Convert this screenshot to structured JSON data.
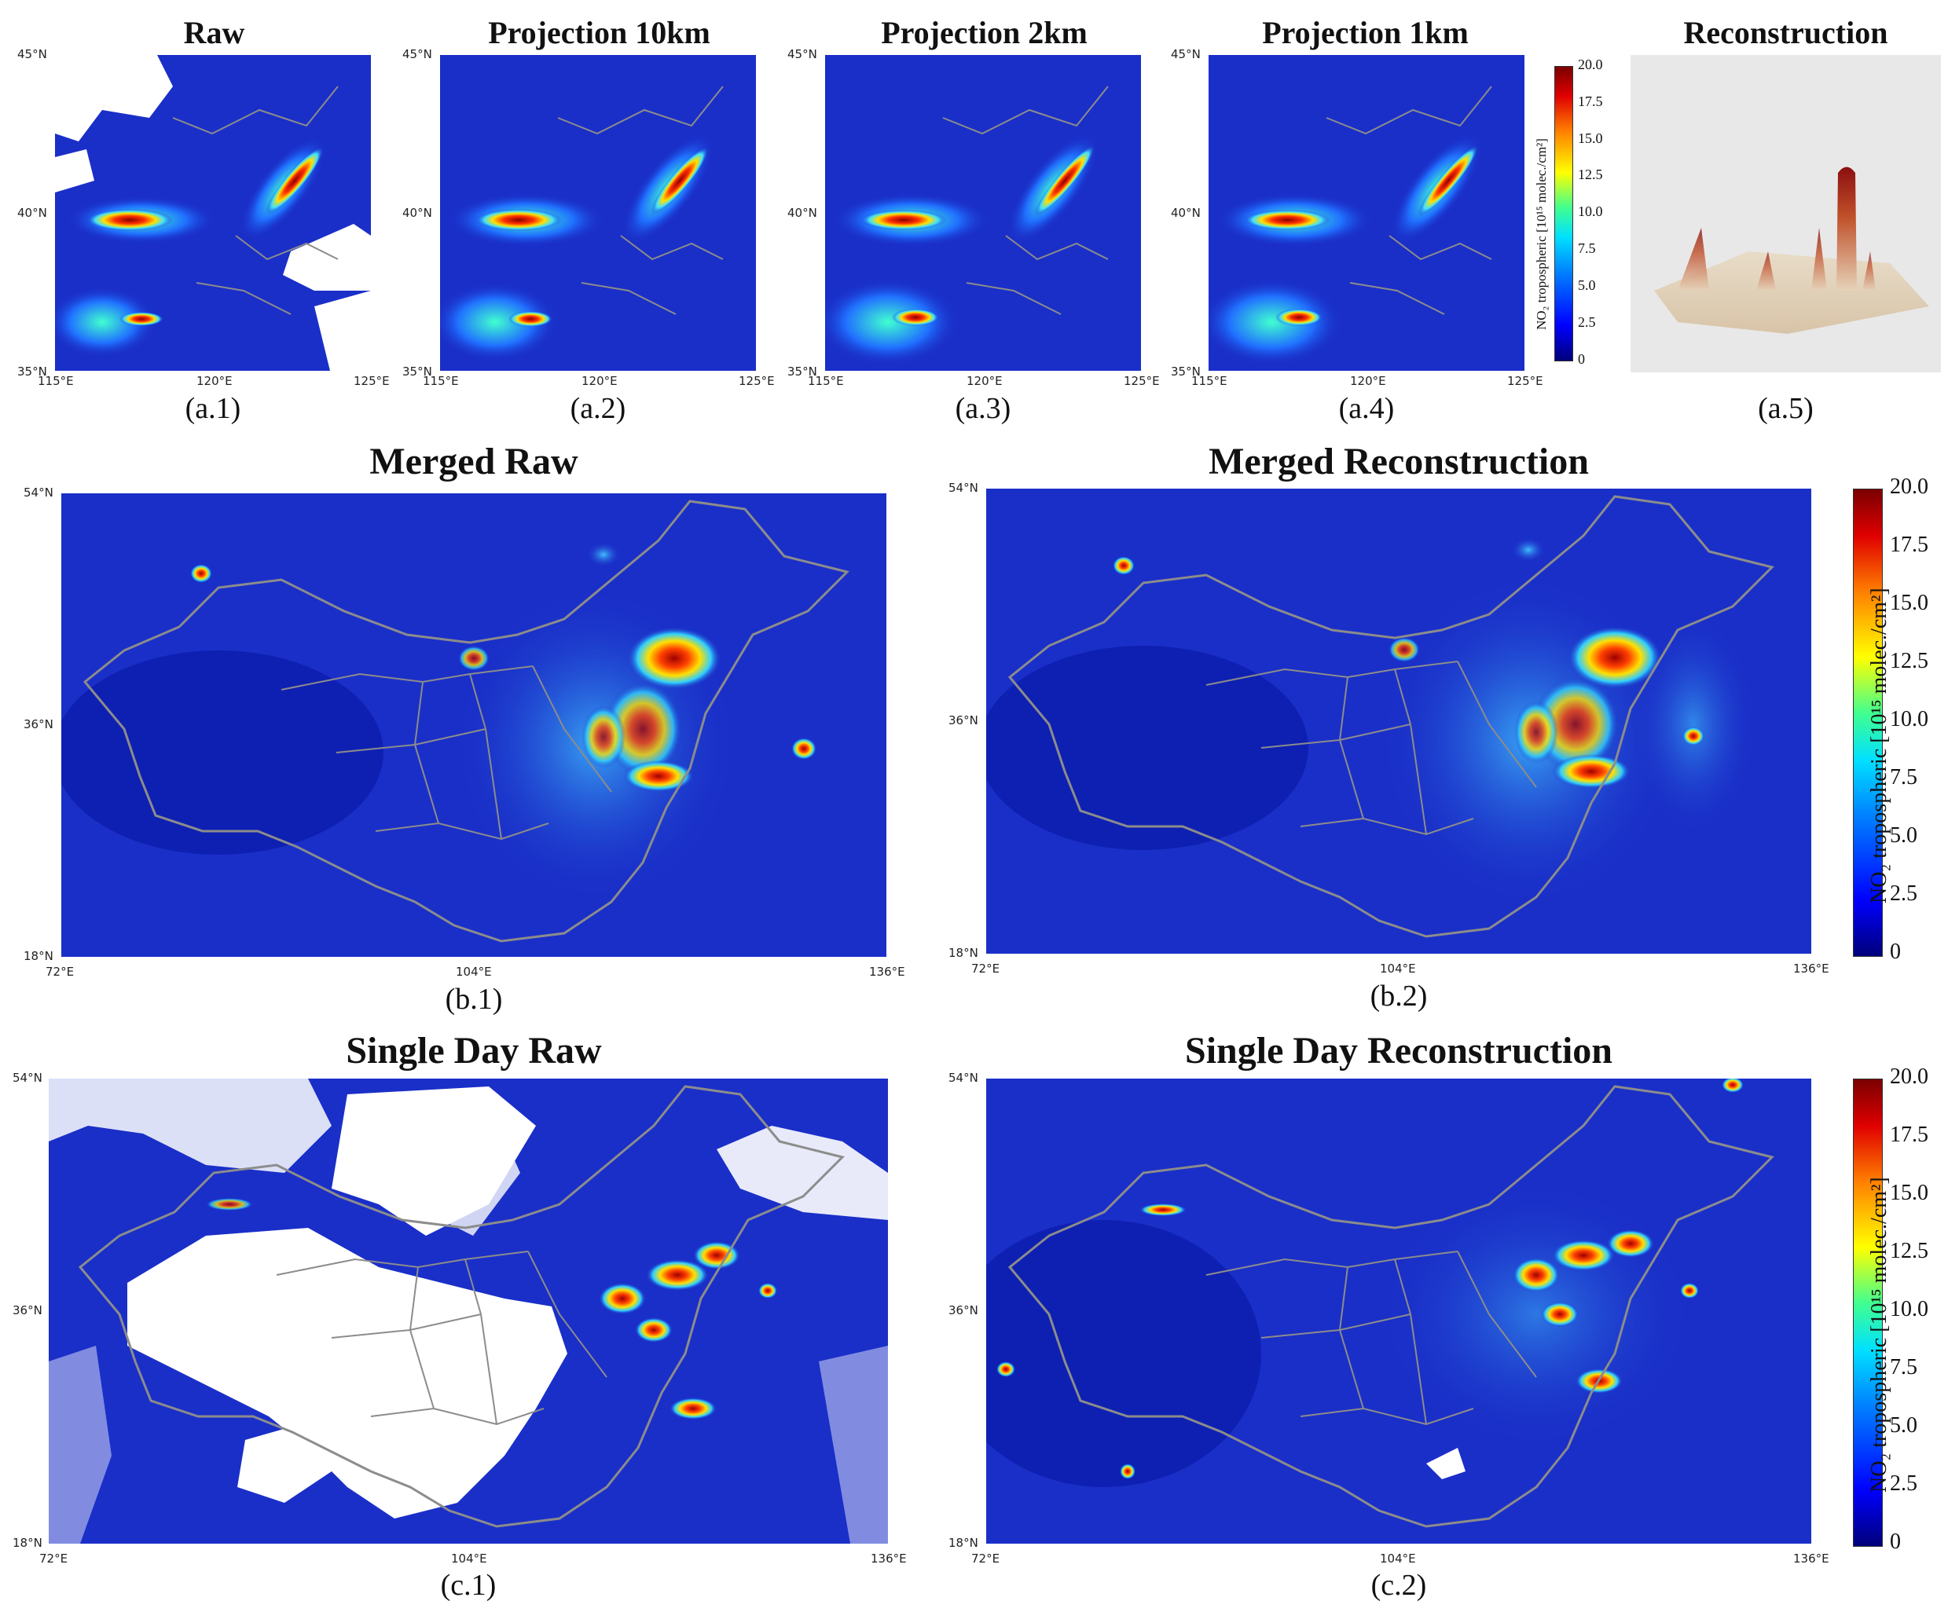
{
  "colors": {
    "map_background": "#1a2fc8",
    "border_line": "#8c8c8c",
    "missing_data": "#ffffff",
    "colormap": "jet"
  },
  "row_a": {
    "panels": [
      {
        "title": "Raw",
        "caption": "(a.1)"
      },
      {
        "title": "Projection 10km",
        "caption": "(a.2)"
      },
      {
        "title": "Projection 2km",
        "caption": "(a.3)"
      },
      {
        "title": "Projection 1km",
        "caption": "(a.4)"
      },
      {
        "title": "Reconstruction",
        "caption": "(a.5)"
      }
    ],
    "lat_ticks": [
      "45°N",
      "40°N",
      "35°N"
    ],
    "lon_ticks": [
      "115°E",
      "120°E",
      "125°E"
    ],
    "colorbar": {
      "label": "NO₂ tropospheric [10¹⁵ molec./cm²]",
      "ticks": [
        "20.0",
        "17.5",
        "15.0",
        "12.5",
        "10.0",
        "7.5",
        "5.0",
        "2.5",
        "0"
      ]
    }
  },
  "row_b": {
    "panels": [
      {
        "title": "Merged Raw",
        "caption": "(b.1)"
      },
      {
        "title": "Merged Reconstruction",
        "caption": "(b.2)"
      }
    ],
    "lat_ticks": [
      "54°N",
      "36°N",
      "18°N"
    ],
    "lon_ticks": [
      "72°E",
      "104°E",
      "136°E"
    ],
    "colorbar": {
      "label": "NO₂ tropospheric [10¹⁵ molec./cm²]",
      "ticks": [
        "20.0",
        "17.5",
        "15.0",
        "12.5",
        "10.0",
        "7.5",
        "5.0",
        "2.5",
        "0"
      ]
    }
  },
  "row_c": {
    "panels": [
      {
        "title": "Single Day Raw",
        "caption": "(c.1)"
      },
      {
        "title": "Single Day Reconstruction",
        "caption": "(c.2)"
      }
    ],
    "lat_ticks": [
      "54°N",
      "36°N",
      "18°N"
    ],
    "lon_ticks": [
      "72°E",
      "104°E",
      "136°E"
    ],
    "colorbar": {
      "label": "NO₂ tropospheric [10¹⁵ molec./cm²]",
      "ticks": [
        "20.0",
        "17.5",
        "15.0",
        "12.5",
        "10.0",
        "7.5",
        "5.0",
        "2.5",
        "0"
      ]
    }
  }
}
